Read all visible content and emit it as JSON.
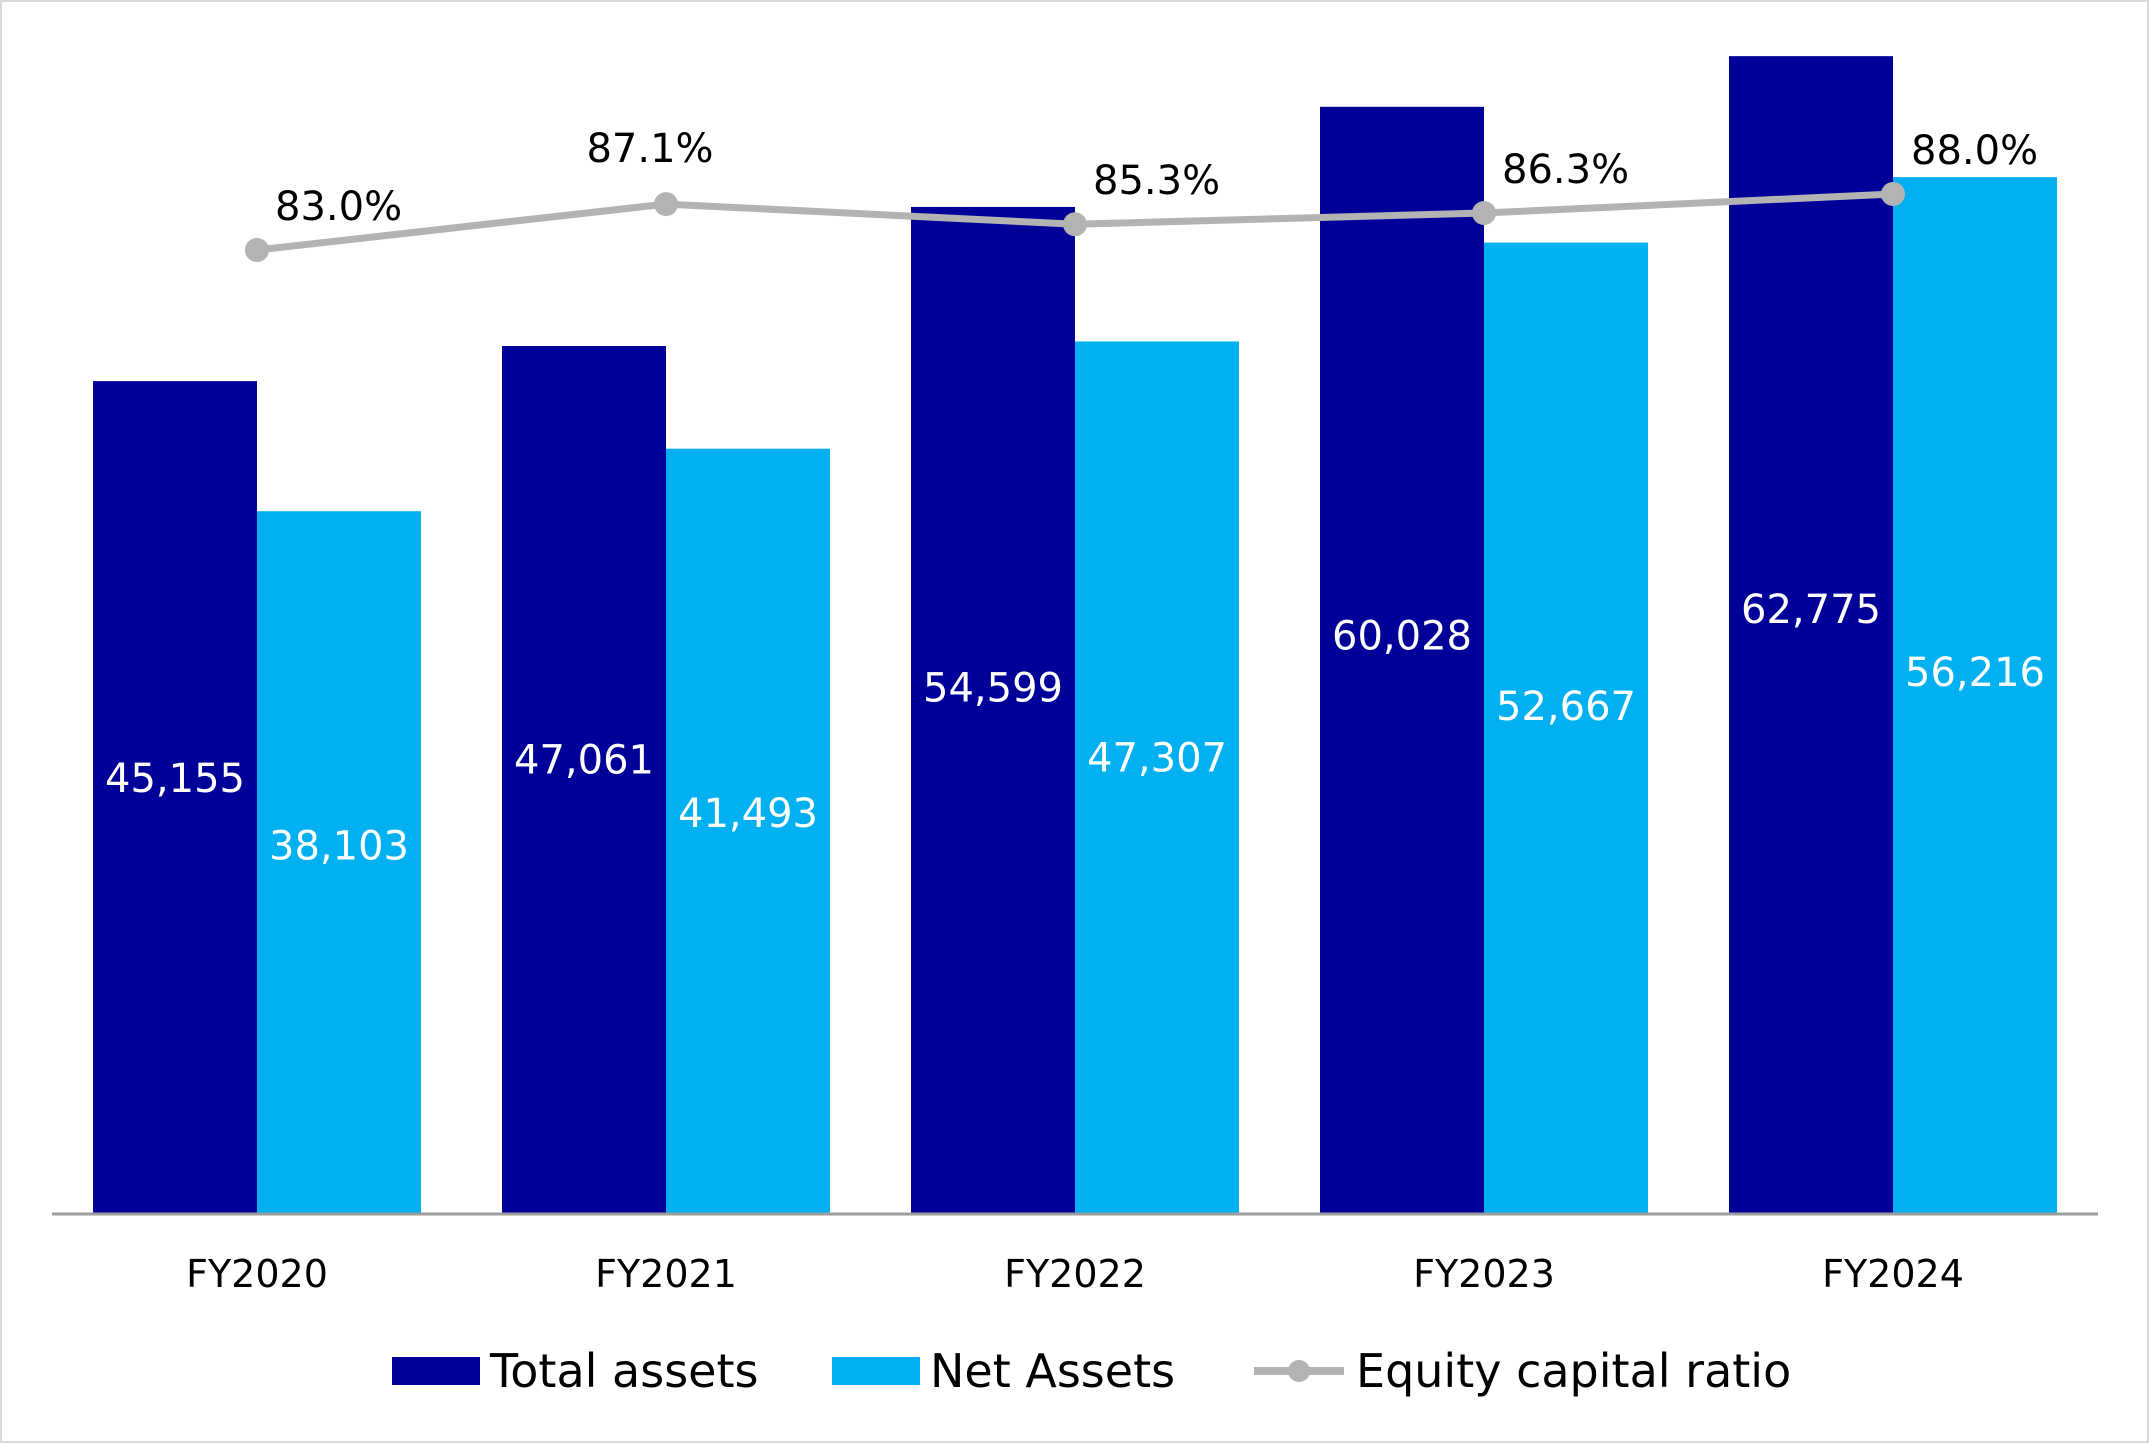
{
  "chart_data": {
    "type": "bar",
    "title": "",
    "xlabel": "",
    "ylabel": "",
    "categories": [
      "FY2020",
      "FY2021",
      "FY2022",
      "FY2023",
      "FY2024"
    ],
    "ylim": [
      0,
      63000
    ],
    "grid": false,
    "legend_position": "bottom",
    "series": [
      {
        "name": "Total assets",
        "kind": "bar",
        "color": "#000099",
        "label_color": "#ffffff",
        "values": [
          45155,
          47061,
          54599,
          60028,
          62775
        ],
        "labels": [
          "45,155",
          "47,061",
          "54,599",
          "60,028",
          "62,775"
        ]
      },
      {
        "name": "Net Assets",
        "kind": "bar",
        "color": "#00b0f0",
        "label_color": "#ffffff",
        "values": [
          38103,
          41493,
          47307,
          52667,
          56216
        ],
        "labels": [
          "38,103",
          "41,493",
          "47,307",
          "52,667",
          "56,216"
        ]
      },
      {
        "name": "Equity capital ratio",
        "kind": "line",
        "axis": "secondary",
        "color": "#b3b3b3",
        "values": [
          83.0,
          87.1,
          85.3,
          86.3,
          88.0
        ],
        "labels": [
          "83.0%",
          "87.1%",
          "85.3%",
          "86.3%",
          "88.0%"
        ],
        "ylim": [
          0,
          100
        ]
      }
    ]
  }
}
